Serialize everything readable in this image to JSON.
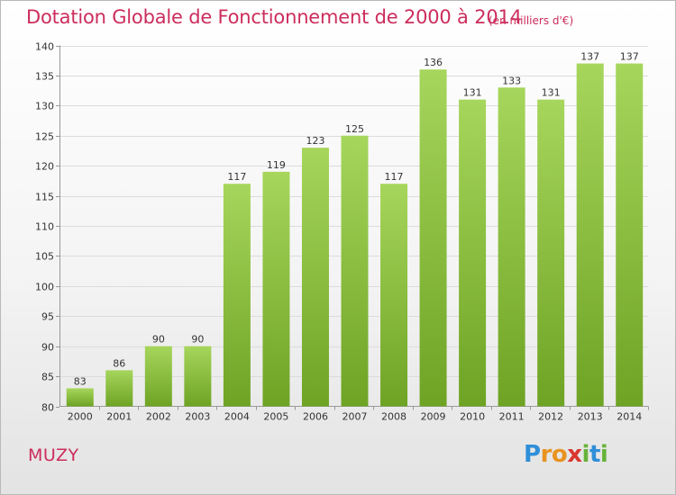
{
  "header": {
    "title": "Dotation Globale de Fonctionnement de 2000 à 2014",
    "unit_note": "(en milliers d'€)"
  },
  "footer": {
    "commune": "MUZY",
    "logo_text": "Proxiti"
  },
  "colors": {
    "title": "#cc2d5c",
    "bar_light": "#a6d65c",
    "bar_dark": "#6ea324",
    "logo": [
      "#2f8fd8",
      "#e89321",
      "#e89321",
      "#d9362f",
      "#67b33a",
      "#2f8fd8",
      "#67b33a"
    ]
  },
  "chart_data": {
    "type": "bar",
    "title": "Dotation Globale de Fonctionnement de 2000 à 2014",
    "subtitle": "(en milliers d'€)",
    "xlabel": "",
    "ylabel": "",
    "categories": [
      "2000",
      "2001",
      "2002",
      "2003",
      "2004",
      "2005",
      "2006",
      "2007",
      "2008",
      "2009",
      "2010",
      "2011",
      "2012",
      "2013",
      "2014"
    ],
    "values": [
      83,
      86,
      90,
      90,
      117,
      119,
      123,
      125,
      117,
      136,
      131,
      133,
      131,
      137,
      137
    ],
    "ylim": [
      80,
      140
    ],
    "yticks": [
      80,
      85,
      90,
      95,
      100,
      105,
      110,
      115,
      120,
      125,
      130,
      135,
      140
    ],
    "grid": true,
    "legend": "none"
  }
}
